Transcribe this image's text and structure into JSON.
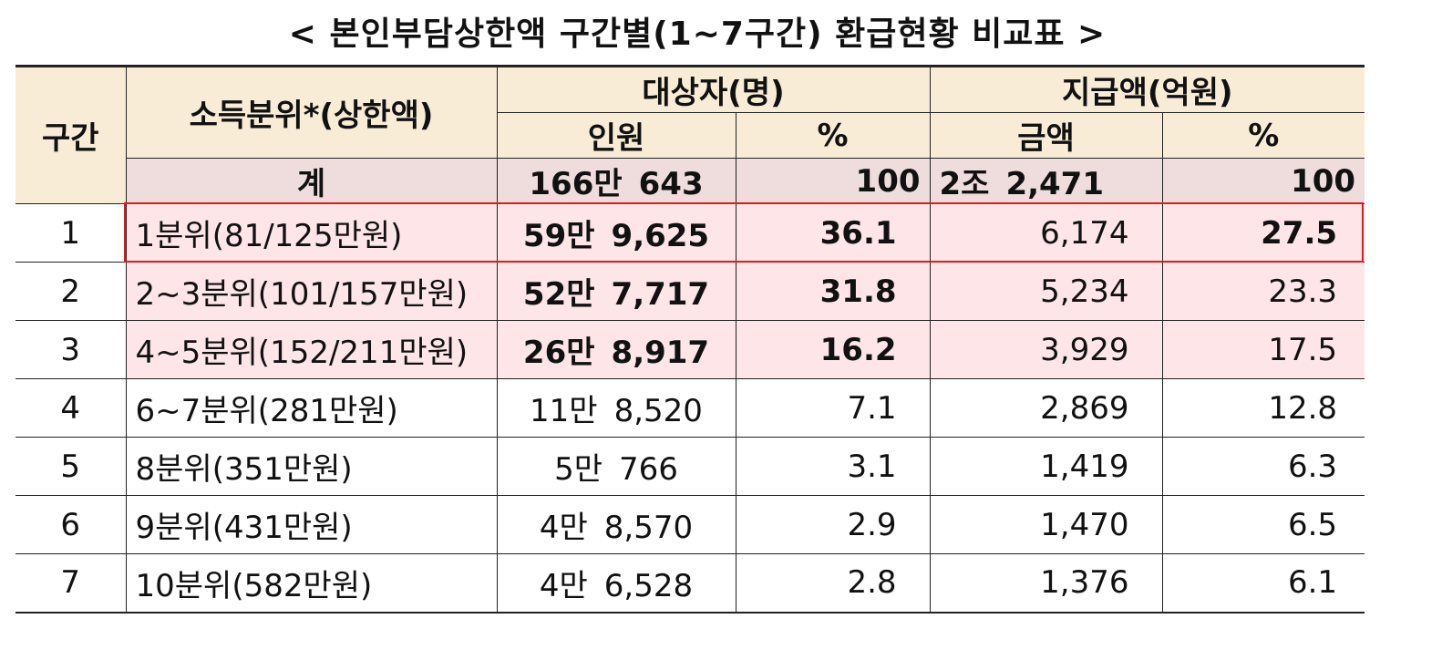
{
  "title": "< 본인부담상한액 구간별(1~7구간) 환급현황 비교표 >",
  "header": {
    "col_group": "구간",
    "col_income": "소득분위*(상한액)",
    "col_target": "대상자(명)",
    "col_payment": "지급액(억원)",
    "sub_count": "인원",
    "sub_pct1": "%",
    "sub_amount": "금액",
    "sub_pct2": "%"
  },
  "total": {
    "label": "계",
    "count_a": "166만",
    "count_b": "643",
    "pct1": "100",
    "amount_a": "2조",
    "amount_b": "2,471",
    "pct2": "100"
  },
  "rows": [
    {
      "group": "1",
      "income": "1분위(81/125만원)",
      "count_a": "59만",
      "count_b": "9,625",
      "pct1": "36.1",
      "amount": "6,174",
      "pct2": "27.5"
    },
    {
      "group": "2",
      "income": "2~3분위(101/157만원)",
      "count_a": "52만",
      "count_b": "7,717",
      "pct1": "31.8",
      "amount": "5,234",
      "pct2": "23.3"
    },
    {
      "group": "3",
      "income": "4~5분위(152/211만원)",
      "count_a": "26만",
      "count_b": "8,917",
      "pct1": "16.2",
      "amount": "3,929",
      "pct2": "17.5"
    },
    {
      "group": "4",
      "income": "6~7분위(281만원)",
      "count_a": "11만",
      "count_b": "8,520",
      "pct1": "7.1",
      "amount": "2,869",
      "pct2": "12.8"
    },
    {
      "group": "5",
      "income": "8분위(351만원)",
      "count_a": "5만",
      "count_b": "766",
      "pct1": "3.1",
      "amount": "1,419",
      "pct2": "6.3"
    },
    {
      "group": "6",
      "income": "9분위(431만원)",
      "count_a": "4만",
      "count_b": "8,570",
      "pct1": "2.9",
      "amount": "1,470",
      "pct2": "6.5"
    },
    {
      "group": "7",
      "income": "10분위(582만원)",
      "count_a": "4만",
      "count_b": "6,528",
      "pct1": "2.8",
      "amount": "1,376",
      "pct2": "6.1"
    }
  ],
  "colors": {
    "header_bg": "#f8ecd7",
    "total_bg": "#efdcdc",
    "highlight_bg": "#fde5e8",
    "highlight_border": "#e01b1b"
  }
}
